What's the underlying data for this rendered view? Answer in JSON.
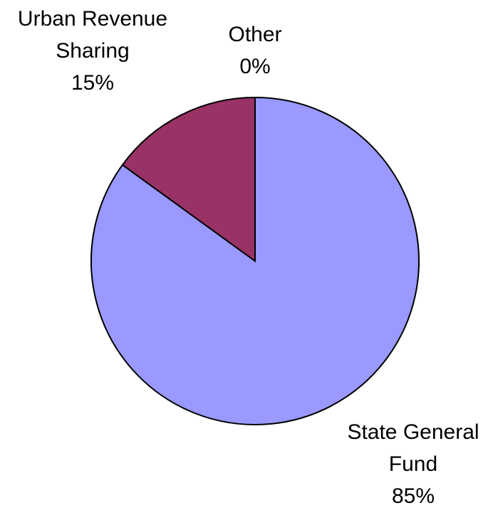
{
  "chart_data": {
    "type": "pie",
    "categories": [
      "State General Fund",
      "Urban Revenue Sharing",
      "Other"
    ],
    "values": [
      85,
      15,
      0
    ],
    "value_labels": [
      "85%",
      "15%",
      "0%"
    ],
    "colors": [
      "#9999ff",
      "#993366",
      "#ffffcc"
    ]
  }
}
